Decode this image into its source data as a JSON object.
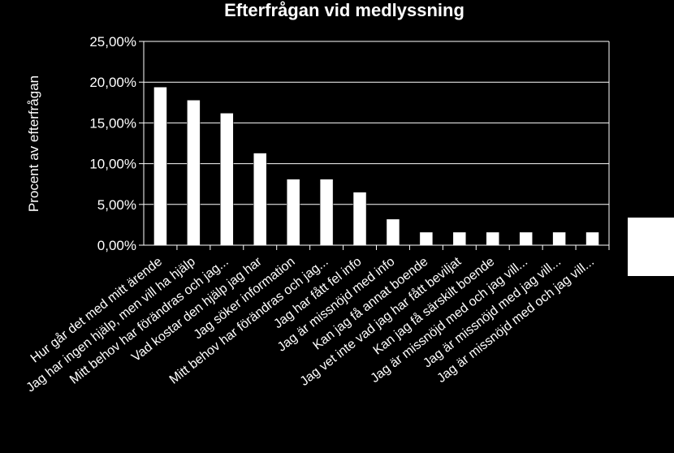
{
  "chart_data": {
    "type": "bar",
    "title": "Efterfrågan vid medlyssning",
    "xlabel": "",
    "ylabel": "Procent av efterfrågan",
    "ylim": [
      0,
      25
    ],
    "yticks": [
      "0,00%",
      "5,00%",
      "10,00%",
      "15,00%",
      "20,00%",
      "25,00%"
    ],
    "grid": true,
    "legend": "right",
    "bar_color": "#ffffff",
    "categories": [
      "Hur går det med mitt ärende",
      "Jag har ingen hjälp, men vill ha hjälp",
      "Mitt behov har förändras och jag...",
      "Vad kostar den hjälp jag har",
      "Jag söker information",
      "Mitt behov har förändras och jag...",
      "Jag har fått fel info",
      "Jag är missnöjd med info",
      "Kan jag få annat boende",
      "Jag vet inte vad jag har fått beviljat",
      "Kan jag få särskilt boende",
      "Jag är missnöjd med och jag vill...",
      "Jag är missnöjd med jag vill...",
      "Jag är missnöjd med och jag vill..."
    ],
    "values": [
      19.4,
      17.8,
      16.2,
      11.3,
      8.1,
      8.1,
      6.5,
      3.2,
      1.6,
      1.6,
      1.6,
      1.6,
      1.6,
      1.6
    ]
  }
}
